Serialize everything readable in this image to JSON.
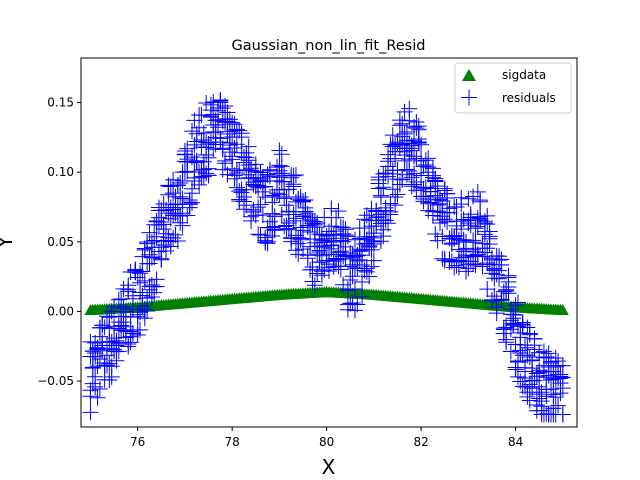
{
  "chart_data": {
    "type": "scatter",
    "title": "Gaussian_non_lin_fit_Resid",
    "xlabel": "X",
    "ylabel": "Y",
    "xlim": [
      74.8,
      85.3
    ],
    "ylim": [
      -0.083,
      0.182
    ],
    "x_ticks": [
      76,
      78,
      80,
      82,
      84
    ],
    "y_ticks": [
      -0.05,
      0.0,
      0.05,
      0.1,
      0.15
    ],
    "x_tick_labels": [
      "76",
      "78",
      "80",
      "82",
      "84"
    ],
    "y_tick_labels": [
      "−0.05",
      "0.00",
      "0.05",
      "0.10",
      "0.15"
    ],
    "grid": false,
    "legend_position": "top-right",
    "series": [
      {
        "name": "sigdata",
        "marker": "triangle-up",
        "color": "#008000",
        "x_range": [
          75.0,
          85.0
        ],
        "x_step": 0.05,
        "peak_x": 80.0,
        "values_at": {
          "x": [
            75.0,
            76.0,
            77.0,
            78.0,
            79.0,
            80.0,
            81.0,
            82.0,
            83.0,
            84.0,
            85.0
          ],
          "y": [
            0.001,
            0.003,
            0.006,
            0.009,
            0.012,
            0.014,
            0.012,
            0.009,
            0.006,
            0.003,
            0.001
          ]
        }
      },
      {
        "name": "residuals",
        "marker": "plus",
        "color": "#0000ff",
        "x_range": [
          75.0,
          85.0
        ],
        "x_step": 0.05,
        "envelope": {
          "x": [
            75.0,
            75.5,
            76.0,
            76.3,
            76.6,
            76.9,
            77.2,
            77.5,
            77.8,
            78.1,
            78.4,
            78.7,
            79.0,
            79.3,
            79.6,
            79.9,
            80.2,
            80.5,
            80.8,
            81.1,
            81.4,
            81.7,
            82.0,
            82.3,
            82.6,
            82.9,
            83.2,
            83.5,
            83.8,
            84.1,
            84.4,
            84.7,
            85.0
          ],
          "y": [
            -0.045,
            -0.02,
            0.01,
            0.035,
            0.06,
            0.08,
            0.11,
            0.125,
            0.125,
            0.11,
            0.09,
            0.07,
            0.09,
            0.075,
            0.05,
            0.04,
            0.06,
            0.02,
            0.04,
            0.07,
            0.1,
            0.12,
            0.11,
            0.07,
            0.06,
            0.055,
            0.06,
            0.035,
            0.005,
            -0.025,
            -0.045,
            -0.055,
            -0.06
          ]
        },
        "y_min": -0.074,
        "y_max": 0.168
      }
    ]
  }
}
